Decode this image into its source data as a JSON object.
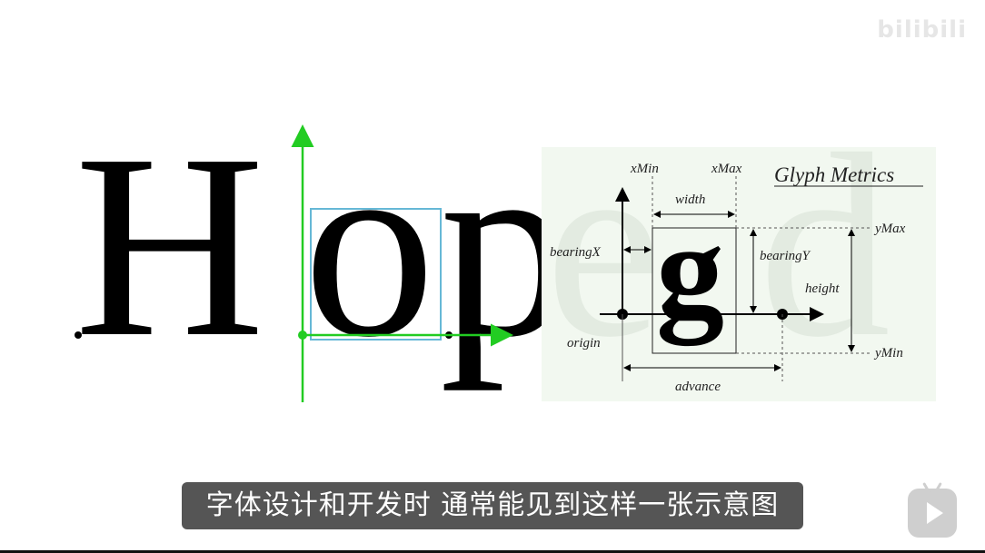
{
  "watermark": "bilibili",
  "big_word": {
    "letter_h": "H",
    "letter_o": "o",
    "letter_p": "p",
    "letter_e": "e",
    "letter_d": "d"
  },
  "glyph_metrics": {
    "title": "Glyph Metrics",
    "glyph": "g",
    "labels": {
      "xmin": "xMin",
      "xmax": "xMax",
      "width": "width",
      "ymax": "yMax",
      "ymin": "yMin",
      "bearing_x": "bearingX",
      "bearing_y": "bearingY",
      "height": "height",
      "origin": "origin",
      "advance": "advance"
    }
  },
  "subtitle": "字体设计和开发时  通常能见到这样一张示意图",
  "colors": {
    "guide_green": "#22cc22",
    "box_cyan": "#66b8d6",
    "panel_bg": "#f2f8f0"
  }
}
